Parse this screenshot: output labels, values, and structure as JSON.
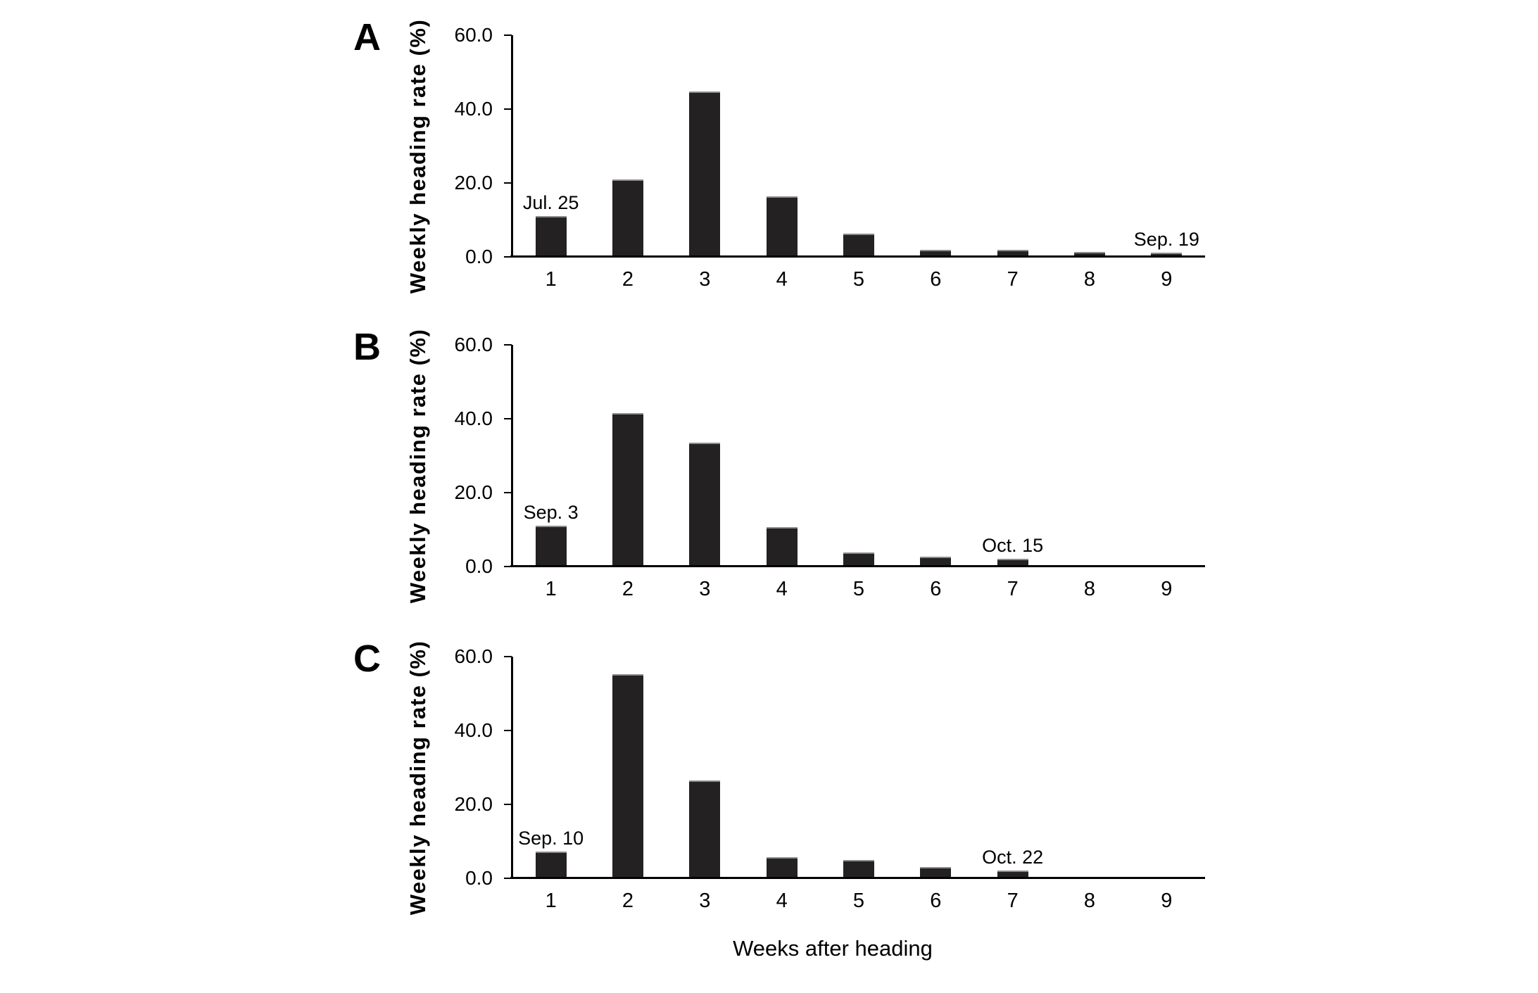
{
  "figure": {
    "background": "#ffffff",
    "axis_color": "#000000",
    "bar_color": "#242122",
    "bar_top_edge_color": "#8c8c8c",
    "xlabel": "Weeks after heading"
  },
  "chart_data": [
    {
      "type": "bar",
      "panel_label": "A",
      "title": "",
      "xlabel": "Weeks after heading",
      "ylabel": "Weekly heading rate (%)",
      "ylim": [
        0,
        60
      ],
      "grid": false,
      "legend": "none",
      "ytick_values": [
        0,
        20,
        40,
        60
      ],
      "ytick_labels": [
        "0.0",
        "20.0",
        "40.0",
        "60.0"
      ],
      "categories": [
        "1",
        "2",
        "3",
        "4",
        "5",
        "6",
        "7",
        "8",
        "9"
      ],
      "values": [
        10.3,
        20.1,
        44.0,
        15.7,
        5.5,
        1.2,
        1.2,
        0.6,
        0.4
      ],
      "annotations": [
        {
          "text": "Jul. 25",
          "week": 1
        },
        {
          "text": "Sep. 19",
          "week": 9
        }
      ]
    },
    {
      "type": "bar",
      "panel_label": "B",
      "title": "",
      "xlabel": "Weeks after heading",
      "ylabel": "Weekly heading rate (%)",
      "ylim": [
        0,
        60
      ],
      "grid": false,
      "legend": "none",
      "ytick_values": [
        0,
        20,
        40,
        60
      ],
      "ytick_labels": [
        "0.0",
        "20.0",
        "40.0",
        "60.0"
      ],
      "categories": [
        "1",
        "2",
        "3",
        "4",
        "5",
        "6",
        "7",
        "8",
        "9"
      ],
      "values": [
        10.2,
        40.8,
        32.8,
        10.0,
        3.1,
        1.9,
        1.4,
        0,
        0
      ],
      "annotations": [
        {
          "text": "Sep. 3",
          "week": 1
        },
        {
          "text": "Oct. 15",
          "week": 7
        }
      ]
    },
    {
      "type": "bar",
      "panel_label": "C",
      "title": "",
      "xlabel": "Weeks after heading",
      "ylabel": "Weekly heading rate (%)",
      "ylim": [
        0,
        60
      ],
      "grid": false,
      "legend": "none",
      "ytick_values": [
        0,
        20,
        40,
        60
      ],
      "ytick_labels": [
        "0.0",
        "20.0",
        "40.0",
        "60.0"
      ],
      "categories": [
        "1",
        "2",
        "3",
        "4",
        "5",
        "6",
        "7",
        "8",
        "9"
      ],
      "values": [
        6.5,
        54.5,
        25.7,
        4.9,
        4.1,
        2.3,
        1.3,
        0,
        0
      ],
      "annotations": [
        {
          "text": "Sep. 10",
          "week": 1
        },
        {
          "text": "Oct. 22",
          "week": 7
        }
      ]
    }
  ]
}
